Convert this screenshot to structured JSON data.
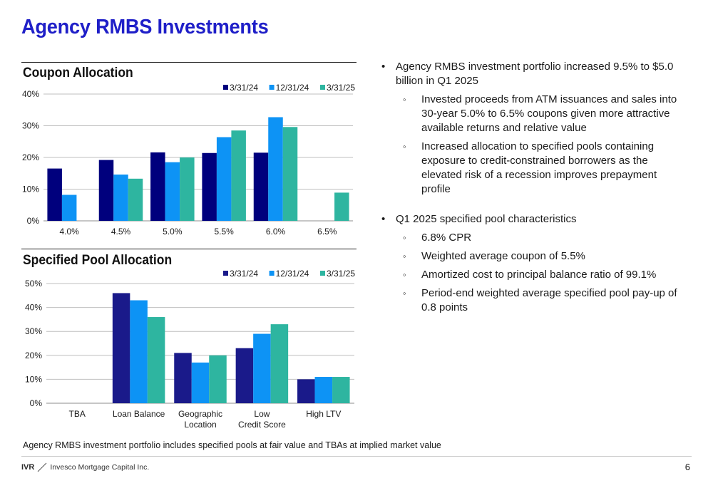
{
  "page": {
    "title": "Agency RMBS Investments",
    "footnote": "Agency RMBS investment portfolio includes specified pools at fair value and TBAs at implied market value",
    "page_number": "6",
    "logo": {
      "ticker": "IVR",
      "company": "Invesco Mortgage Capital Inc."
    }
  },
  "bullets": [
    {
      "level": 1,
      "text": "Agency RMBS investment portfolio increased 9.5% to $5.0 billion in Q1 2025"
    },
    {
      "level": 2,
      "text": "Invested proceeds from ATM issuances and sales into 30-year 5.0% to 6.5% coupons given more attractive available returns and relative value"
    },
    {
      "level": 2,
      "text": "Increased allocation to specified pools containing exposure to credit-constrained borrowers as the elevated risk of a recession improves prepayment profile"
    },
    {
      "level": 1,
      "text": "Q1 2025 specified pool characteristics"
    },
    {
      "level": 2,
      "text": "6.8% CPR"
    },
    {
      "level": 2,
      "text": "Weighted average coupon of 5.5%"
    },
    {
      "level": 2,
      "text": "Amortized cost to principal balance ratio of 99.1%"
    },
    {
      "level": 2,
      "text": "Period-end weighted average specified pool pay-up of 0.8 points"
    }
  ],
  "chart_data": [
    {
      "type": "bar",
      "title": "Coupon Allocation",
      "categories": [
        "4.0%",
        "4.5%",
        "5.0%",
        "5.5%",
        "6.0%",
        "6.5%"
      ],
      "series": [
        {
          "name": "3/31/24",
          "color": "#00007d",
          "values": [
            16.5,
            19.2,
            21.6,
            21.4,
            21.5,
            0
          ]
        },
        {
          "name": "12/31/24",
          "color": "#0d93f5",
          "values": [
            8.2,
            14.6,
            18.5,
            26.4,
            32.7,
            0
          ]
        },
        {
          "name": "3/31/25",
          "color": "#2eb5a0",
          "values": [
            0,
            13.3,
            20.0,
            28.5,
            29.6,
            8.9
          ]
        }
      ],
      "ylim": [
        0,
        40
      ],
      "yticks": [
        0,
        10,
        20,
        30,
        40
      ],
      "ytick_labels": [
        "0%",
        "10%",
        "20%",
        "30%",
        "40%"
      ],
      "grid": true,
      "legend": "top-right"
    },
    {
      "type": "bar",
      "title": "Specified Pool Allocation",
      "categories": [
        "TBA",
        "Loan Balance",
        "Geographic Location",
        "Low Credit Score",
        "High LTV"
      ],
      "series": [
        {
          "name": "3/31/24",
          "color": "#1a1a8a",
          "values": [
            0,
            46,
            21,
            23,
            10
          ]
        },
        {
          "name": "12/31/24",
          "color": "#0d93f5",
          "values": [
            0,
            43,
            17,
            29,
            11
          ]
        },
        {
          "name": "3/31/25",
          "color": "#2eb5a0",
          "values": [
            0,
            36,
            20,
            33,
            11
          ]
        }
      ],
      "ylim": [
        0,
        50
      ],
      "yticks": [
        0,
        10,
        20,
        30,
        40,
        50
      ],
      "ytick_labels": [
        "0%",
        "10%",
        "20%",
        "30%",
        "40%",
        "50%"
      ],
      "grid": true,
      "legend": "top-right"
    }
  ]
}
